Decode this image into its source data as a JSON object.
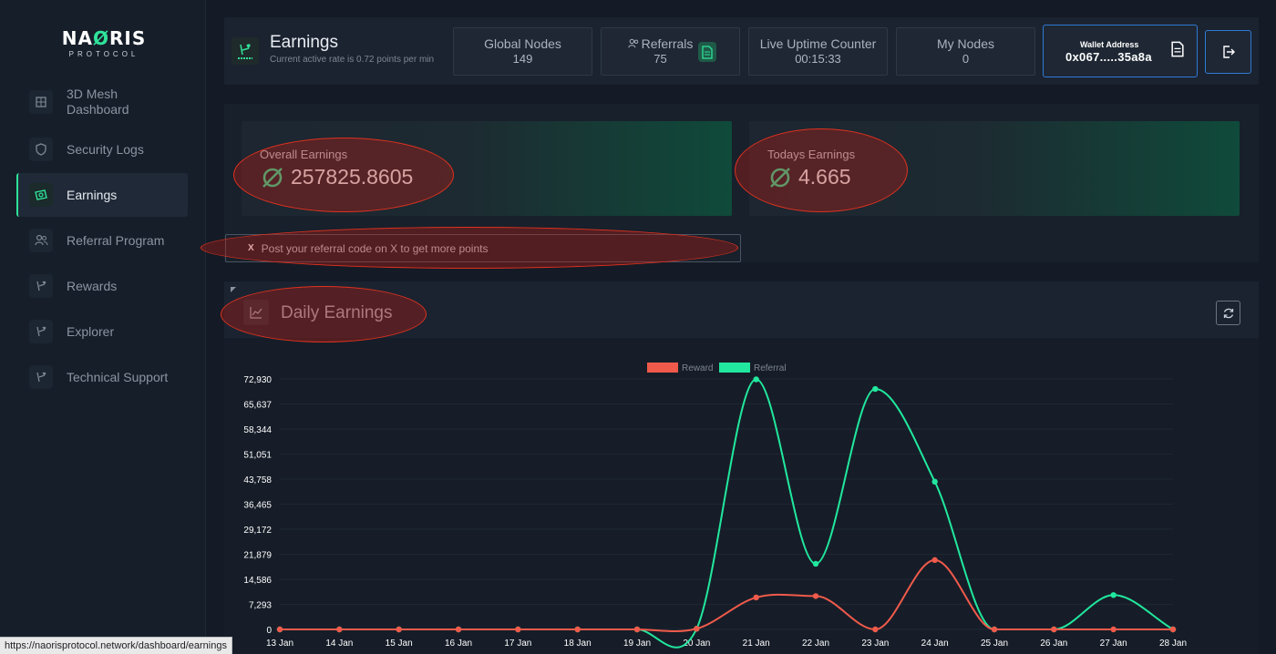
{
  "logo": {
    "main_pre": "NA",
    "main_mark": "Ø",
    "main_post": "RIS",
    "sub": "PROTOCOL"
  },
  "sidebar": {
    "items": [
      {
        "label": "3D Mesh Dashboard",
        "icon": "mesh-icon"
      },
      {
        "label": "Security Logs",
        "icon": "shield-icon"
      },
      {
        "label": "Earnings",
        "icon": "earnings-icon",
        "active": true
      },
      {
        "label": "Referral Program",
        "icon": "users-icon"
      },
      {
        "label": "Rewards",
        "icon": "rewards-icon"
      },
      {
        "label": "Explorer",
        "icon": "explorer-icon"
      },
      {
        "label": "Technical Support",
        "icon": "support-icon"
      }
    ]
  },
  "header": {
    "title": "Earnings",
    "subtitle": "Current active rate is 0.72 points per min",
    "stats": [
      {
        "label": "Global Nodes",
        "value": "149"
      },
      {
        "label": "Referrals",
        "value": "75"
      },
      {
        "label": "Live Uptime Counter",
        "value": "00:15:33"
      },
      {
        "label": "My Nodes",
        "value": "0"
      }
    ],
    "wallet": {
      "label": "Wallet Address",
      "value": "0x067.....35a8a"
    }
  },
  "earnings": {
    "overall": {
      "label": "Overall Earnings",
      "value": "257825.8605"
    },
    "today": {
      "label": "Todays Earnings",
      "value": "4.665"
    },
    "post_referral": "Post your referral code on X to get more points",
    "x_icon": "X"
  },
  "daily": {
    "title": "Daily Earnings"
  },
  "chart_data": {
    "type": "line",
    "categories": [
      "13 Jan",
      "14 Jan",
      "15 Jan",
      "16 Jan",
      "17 Jan",
      "18 Jan",
      "19 Jan",
      "20 Jan",
      "21 Jan",
      "22 Jan",
      "23 Jan",
      "24 Jan",
      "25 Jan",
      "26 Jan",
      "27 Jan",
      "28 Jan"
    ],
    "series": [
      {
        "name": "Reward",
        "color": "#f05a4b",
        "values": [
          0,
          0,
          0,
          0,
          0,
          0,
          0,
          200,
          9300,
          9700,
          0,
          20200,
          0,
          0,
          0,
          0
        ]
      },
      {
        "name": "Referral",
        "color": "#21e89e",
        "values": [
          0,
          0,
          0,
          0,
          0,
          0,
          0,
          200,
          72800,
          19100,
          70000,
          43000,
          0,
          0,
          10000,
          0
        ]
      }
    ],
    "yticks": [
      "0",
      "7,293",
      "14,586",
      "21,879",
      "29,172",
      "36,465",
      "43,758",
      "51,051",
      "58,344",
      "65,637",
      "72,930"
    ],
    "ylim": [
      0,
      72930
    ],
    "grid": true,
    "legend": "top-center"
  },
  "status_bar": {
    "url": "https://naorisprotocol.network/dashboard/earnings"
  },
  "colors": {
    "accent": "#2fe39a",
    "wallet_border": "#2f7ad6",
    "annotation": "#e0321f"
  }
}
